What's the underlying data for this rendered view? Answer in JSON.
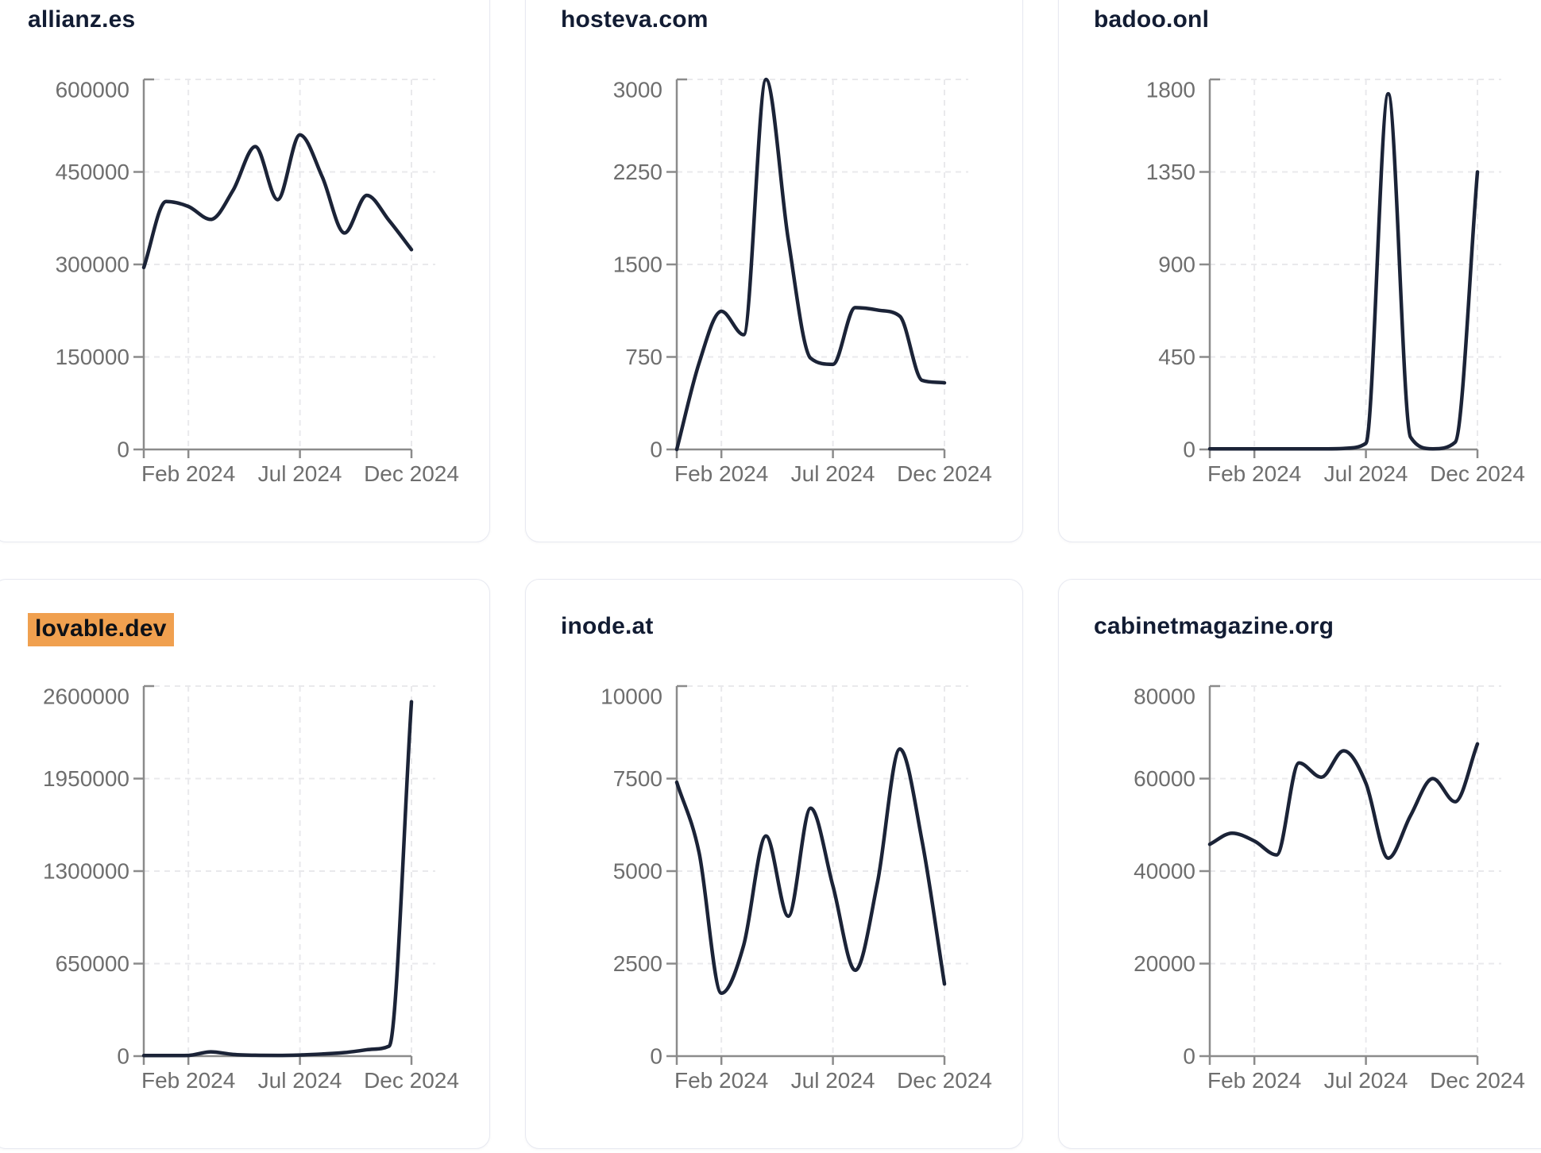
{
  "page": {
    "background_color": "#ffffff",
    "card_border_color": "#e7e9f1",
    "title_color": "#121c33",
    "highlight_color": "#f0a04f",
    "line_color": "#1b2337",
    "axis_color": "#8b8b8b",
    "grid_color": "#e9e9ec",
    "tick_label_color": "#6e6e6e"
  },
  "chart_data": [
    {
      "type": "line",
      "title": "allianz.es",
      "highlighted": false,
      "x": [
        "Dec 2023",
        "Jan 2024",
        "Feb 2024",
        "Mar 2024",
        "Apr 2024",
        "May 2024",
        "Jun 2024",
        "Jul 2024",
        "Aug 2024",
        "Sep 2024",
        "Oct 2024",
        "Nov 2024",
        "Dec 2024"
      ],
      "values": [
        295000,
        402000,
        394000,
        373000,
        420000,
        491000,
        405000,
        510000,
        442000,
        351000,
        412000,
        371000,
        324000
      ],
      "y_ticks": [
        0,
        150000,
        300000,
        450000,
        600000
      ],
      "ylim": [
        0,
        600000
      ],
      "x_tick_labels": [
        "Feb 2024",
        "Jul 2024",
        "Dec 2024"
      ],
      "x_tick_indices": [
        2,
        7,
        12
      ],
      "grid": true,
      "legend": "none"
    },
    {
      "type": "line",
      "title": "hosteva.com",
      "highlighted": false,
      "x": [
        "Dec 2023",
        "Jan 2024",
        "Feb 2024",
        "Mar 2024",
        "Apr 2024",
        "May 2024",
        "Jun 2024",
        "Jul 2024",
        "Aug 2024",
        "Sep 2024",
        "Oct 2024",
        "Nov 2024",
        "Dec 2024"
      ],
      "values": [
        0,
        700,
        1120,
        930,
        3000,
        1700,
        740,
        690,
        1150,
        1130,
        1080,
        560,
        540
      ],
      "y_ticks": [
        0,
        750,
        1500,
        2250,
        3000
      ],
      "ylim": [
        0,
        3000
      ],
      "x_tick_labels": [
        "Feb 2024",
        "Jul 2024",
        "Dec 2024"
      ],
      "x_tick_indices": [
        2,
        7,
        12
      ],
      "grid": true,
      "legend": "none"
    },
    {
      "type": "line",
      "title": "badoo.onl",
      "highlighted": false,
      "x": [
        "Dec 2023",
        "Jan 2024",
        "Feb 2024",
        "Mar 2024",
        "Apr 2024",
        "May 2024",
        "Jun 2024",
        "Jul 2024",
        "Aug 2024",
        "Sep 2024",
        "Oct 2024",
        "Nov 2024",
        "Dec 2024"
      ],
      "values": [
        3,
        3,
        3,
        3,
        3,
        3,
        5,
        30,
        1730,
        60,
        3,
        35,
        1350
      ],
      "y_ticks": [
        0,
        450,
        900,
        1350,
        1800
      ],
      "ylim": [
        0,
        1800
      ],
      "x_tick_labels": [
        "Feb 2024",
        "Jul 2024",
        "Dec 2024"
      ],
      "x_tick_indices": [
        2,
        7,
        12
      ],
      "grid": true,
      "legend": "none"
    },
    {
      "type": "line",
      "title": "lovable.dev",
      "highlighted": true,
      "x": [
        "Dec 2023",
        "Jan 2024",
        "Feb 2024",
        "Mar 2024",
        "Apr 2024",
        "May 2024",
        "Jun 2024",
        "Jul 2024",
        "Aug 2024",
        "Sep 2024",
        "Oct 2024",
        "Nov 2024",
        "Dec 2024"
      ],
      "values": [
        4000,
        4000,
        5000,
        30000,
        12000,
        6000,
        5000,
        8000,
        15000,
        25000,
        45000,
        70000,
        2490000
      ],
      "y_ticks": [
        0,
        650000,
        1300000,
        1950000,
        2600000
      ],
      "ylim": [
        0,
        2600000
      ],
      "x_tick_labels": [
        "Feb 2024",
        "Jul 2024",
        "Dec 2024"
      ],
      "x_tick_indices": [
        2,
        7,
        12
      ],
      "grid": true,
      "legend": "none"
    },
    {
      "type": "line",
      "title": "inode.at",
      "highlighted": false,
      "x": [
        "Dec 2023",
        "Jan 2024",
        "Feb 2024",
        "Mar 2024",
        "Apr 2024",
        "May 2024",
        "Jun 2024",
        "Jul 2024",
        "Aug 2024",
        "Sep 2024",
        "Oct 2024",
        "Nov 2024",
        "Dec 2024"
      ],
      "values": [
        7400,
        5500,
        1700,
        3000,
        5950,
        3780,
        6700,
        4600,
        2320,
        4700,
        8300,
        5800,
        1950
      ],
      "y_ticks": [
        0,
        2500,
        5000,
        7500,
        10000
      ],
      "ylim": [
        0,
        10000
      ],
      "x_tick_labels": [
        "Feb 2024",
        "Jul 2024",
        "Dec 2024"
      ],
      "x_tick_indices": [
        2,
        7,
        12
      ],
      "grid": true,
      "legend": "none"
    },
    {
      "type": "line",
      "title": "cabinetmagazine.org",
      "highlighted": false,
      "x": [
        "Dec 2023",
        "Jan 2024",
        "Feb 2024",
        "Mar 2024",
        "Apr 2024",
        "May 2024",
        "Jun 2024",
        "Jul 2024",
        "Aug 2024",
        "Sep 2024",
        "Oct 2024",
        "Nov 2024",
        "Dec 2024"
      ],
      "values": [
        45800,
        48200,
        46500,
        43500,
        63400,
        60300,
        66000,
        59000,
        42800,
        52000,
        60000,
        55000,
        67500
      ],
      "y_ticks": [
        0,
        20000,
        40000,
        60000,
        80000
      ],
      "ylim": [
        0,
        80000
      ],
      "x_tick_labels": [
        "Feb 2024",
        "Jul 2024",
        "Dec 2024"
      ],
      "x_tick_indices": [
        2,
        7,
        12
      ],
      "grid": true,
      "legend": "none"
    }
  ]
}
